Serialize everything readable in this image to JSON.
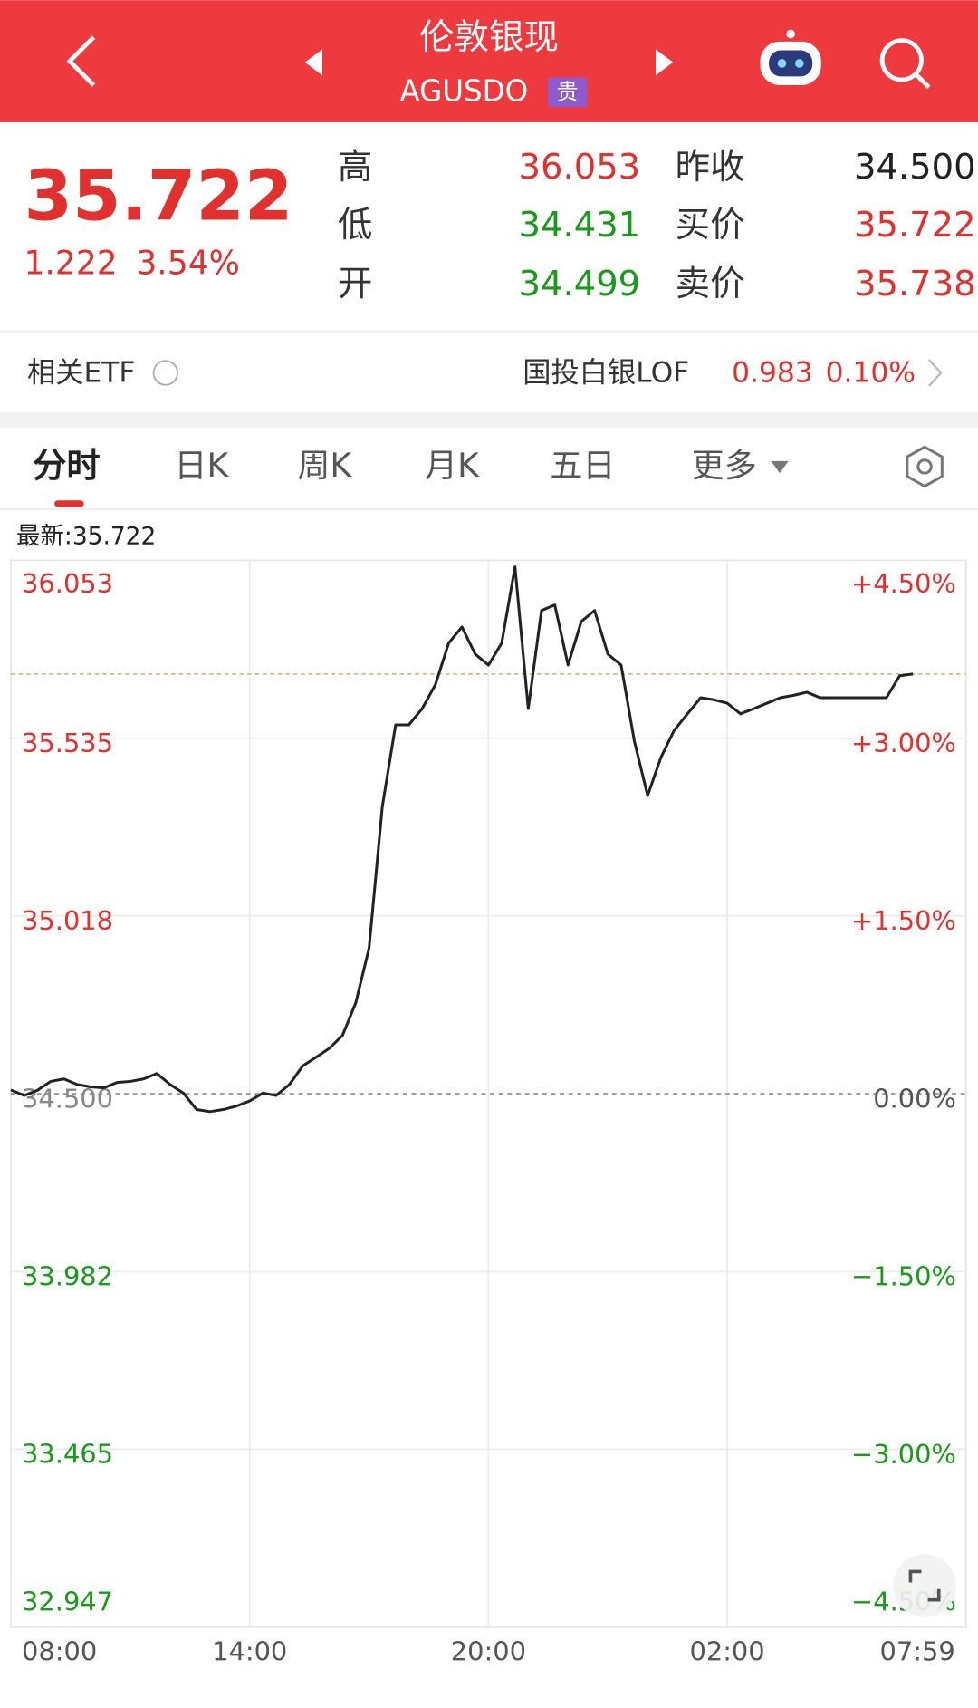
{
  "header": {
    "title": "伦敦银现",
    "code": "AGUSDO",
    "badge": "贵"
  },
  "quote": {
    "price": "35.722",
    "change": "1.222",
    "change_pct": "3.54%",
    "stats": [
      {
        "label": "高",
        "value": "36.053"
      },
      {
        "label": "低",
        "value": "34.431"
      },
      {
        "label": "开",
        "value": "34.499"
      },
      {
        "label": "昨收",
        "value": "34.500"
      },
      {
        "label": "买价",
        "value": "35.722"
      },
      {
        "label": "卖价",
        "value": "35.738"
      }
    ]
  },
  "etf": {
    "label": "相关ETF",
    "name": "国投白银LOF",
    "price": "0.983",
    "change_pct": "0.10%"
  },
  "tabs": [
    "分时",
    "日K",
    "周K",
    "月K",
    "五日",
    "更多"
  ],
  "chart_data": {
    "type": "line",
    "latest_label": "最新:35.722",
    "latest": 35.722,
    "color": "#222222",
    "categories": [
      "08:00",
      null,
      null,
      null,
      null,
      null,
      null,
      null,
      null,
      null,
      null,
      null,
      null,
      null,
      null,
      null,
      null,
      null,
      "14:00",
      null,
      null,
      null,
      null,
      null,
      null,
      null,
      null,
      null,
      null,
      null,
      null,
      null,
      null,
      null,
      null,
      null,
      "20:00",
      null,
      null,
      null,
      null,
      null,
      null,
      null,
      null,
      null,
      null,
      null,
      null,
      null,
      null,
      null,
      null,
      null,
      "02:00",
      null,
      null,
      null,
      null,
      null,
      null,
      null,
      null,
      null,
      null,
      null,
      null,
      null,
      null,
      null,
      null,
      null,
      "07:59"
    ],
    "values": [
      34.511,
      34.495,
      34.51,
      34.536,
      34.543,
      34.527,
      34.52,
      34.517,
      34.533,
      34.536,
      34.543,
      34.559,
      34.527,
      34.502,
      34.454,
      34.448,
      34.454,
      34.464,
      34.479,
      34.502,
      34.495,
      34.527,
      34.581,
      34.606,
      34.632,
      34.67,
      34.765,
      34.924,
      35.336,
      35.574,
      35.574,
      35.621,
      35.691,
      35.812,
      35.859,
      35.78,
      35.748,
      35.812,
      36.034,
      35.621,
      35.907,
      35.923,
      35.748,
      35.875,
      35.907,
      35.78,
      35.748,
      35.526,
      35.368,
      35.479,
      35.558,
      35.606,
      35.653,
      35.647,
      35.637,
      35.606,
      35.621,
      35.637,
      35.653,
      35.66,
      35.669,
      35.653,
      35.653,
      35.653,
      35.653,
      35.653,
      35.653,
      35.717,
      35.722,
      null,
      null,
      null,
      null
    ],
    "ylim": [
      32.947,
      36.053
    ],
    "yticks": [
      36.053,
      35.535,
      35.018,
      {
        "value": 34.5,
        "label": "34.500"
      },
      33.982,
      33.465,
      32.947
    ],
    "y2lim": [
      -4.5,
      4.5
    ],
    "y2ticks": [
      {
        "value": 4.5,
        "label": "+4.50%"
      },
      {
        "value": 3,
        "label": "+3.00%"
      },
      {
        "value": 1.5,
        "label": "+1.50%"
      },
      {
        "value": 0,
        "label": "0.00%"
      },
      {
        "value": -1.5,
        "label": "−1.50%"
      },
      {
        "value": -3,
        "label": "−3.00%"
      },
      {
        "value": -4.5,
        "label": "−4.50%"
      }
    ],
    "grid": true
  }
}
